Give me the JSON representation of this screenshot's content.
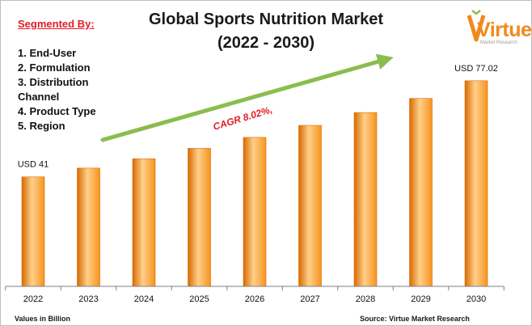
{
  "title": "Global Sports Nutrition Market\n(2022 - 2030)",
  "segmentation": {
    "heading": "Segmented By",
    "heading_suffix": ":",
    "items": [
      "1. End-User",
      "2. Formulation",
      "3. Distribution Channel",
      "4. Product Type",
      "5. Region"
    ]
  },
  "logo": {
    "name": "Virtue",
    "tagline": "Market Research"
  },
  "growth": {
    "label": "CAGR 8.02%,"
  },
  "footnotes": {
    "units": "Values in Billion",
    "source": "Source: Virtue Market Research"
  },
  "colors": {
    "bar": "#f7931e",
    "bar_light": "#ffd08a",
    "bar_dark": "#d86a00",
    "arrow": "#8bbd4e",
    "accent_red": "#e31b23",
    "axis": "#7f7f7f"
  },
  "chart_data": {
    "type": "bar",
    "categories": [
      "2022",
      "2023",
      "2024",
      "2025",
      "2026",
      "2027",
      "2028",
      "2029",
      "2030"
    ],
    "values": [
      41,
      44.3,
      47.8,
      51.7,
      55.8,
      60.3,
      65.1,
      70.4,
      77.02
    ],
    "data_labels": [
      {
        "category": "2022",
        "text": "USD 41"
      },
      {
        "category": "2030",
        "text": "USD 77.02"
      }
    ],
    "ylim": [
      0,
      90
    ],
    "grid": false,
    "legend": "none",
    "xlabel": "",
    "ylabel": ""
  }
}
